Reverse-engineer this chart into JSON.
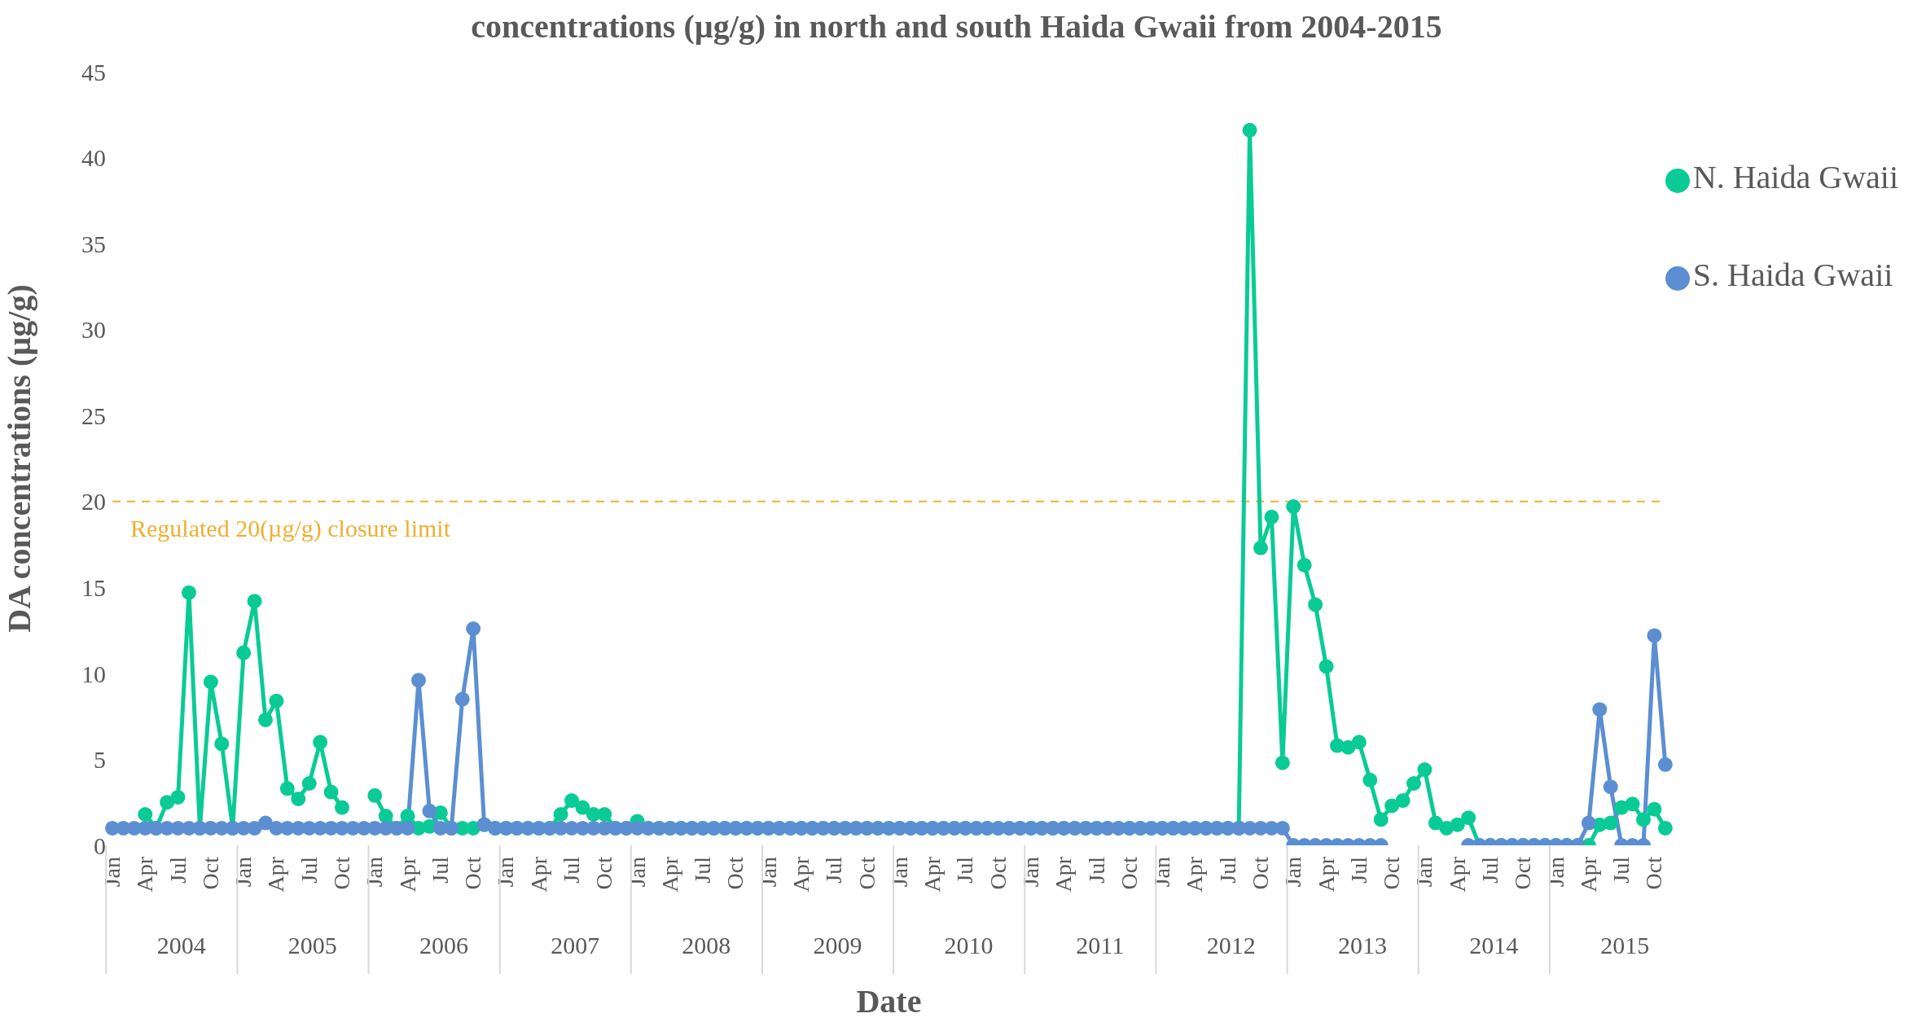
{
  "chart_data": {
    "type": "line",
    "title": "concentrations (µg/g) in north and south Haida Gwaii from 2004-2015",
    "xlabel": "Date",
    "ylabel": "DA concentrations (µg/g)",
    "categories": [
      "Jan",
      null,
      null,
      "Apr",
      null,
      null,
      "Jul",
      null,
      null,
      "Oct",
      null,
      null,
      "Jan",
      null,
      null,
      "Apr",
      null,
      null,
      "Jul",
      null,
      null,
      "Oct",
      null,
      null,
      "Jan",
      null,
      null,
      "Apr",
      null,
      null,
      "Jul",
      null,
      null,
      "Oct",
      null,
      null,
      "Jan",
      null,
      null,
      "Apr",
      null,
      null,
      "Jul",
      null,
      null,
      "Oct",
      null,
      null,
      "Jan",
      null,
      null,
      "Apr",
      null,
      null,
      "Jul",
      null,
      null,
      "Oct",
      null,
      null,
      "Jan",
      null,
      null,
      "Apr",
      null,
      null,
      "Jul",
      null,
      null,
      "Oct",
      null,
      null,
      "Jan",
      null,
      null,
      "Apr",
      null,
      null,
      "Jul",
      null,
      null,
      "Oct",
      null,
      null,
      "Jan",
      null,
      null,
      "Apr",
      null,
      null,
      "Jul",
      null,
      null,
      "Oct",
      null,
      null,
      "Jan",
      null,
      null,
      "Apr",
      null,
      null,
      "Jul",
      null,
      null,
      "Oct",
      null,
      null,
      "Jan",
      null,
      null,
      "Apr",
      null,
      null,
      "Jul",
      null,
      null,
      "Oct",
      null,
      null,
      "Jan",
      null,
      null,
      "Apr",
      null,
      null,
      "Jul",
      null,
      null,
      "Oct",
      null,
      null,
      "Jan",
      null,
      null,
      "Apr",
      null,
      null,
      "Jul",
      null,
      null,
      "Oct",
      null
    ],
    "series": [
      {
        "name": "N. Haida Gwaii",
        "color": "#0acb95",
        "values": [
          null,
          null,
          null,
          1.8,
          1.0,
          2.5,
          2.8,
          14.7,
          1.0,
          9.5,
          5.9,
          1.0,
          11.2,
          14.2,
          7.3,
          8.4,
          3.3,
          2.7,
          3.6,
          6.0,
          3.1,
          2.2,
          null,
          null,
          2.9,
          1.7,
          1.0,
          1.7,
          1.0,
          1.1,
          1.9,
          1.0,
          1.0,
          1.0,
          1.2,
          1.0,
          1,
          1,
          1,
          1,
          1,
          1.8,
          2.6,
          2.2,
          1.8,
          1.8,
          1,
          1,
          1.4,
          1,
          1,
          1,
          1,
          1,
          1,
          1,
          1,
          1,
          1,
          1,
          1,
          1,
          1,
          1,
          1,
          1,
          1,
          1,
          1,
          1,
          1,
          1,
          1,
          1,
          1,
          1,
          1,
          1,
          1,
          1,
          1,
          1,
          1,
          1,
          1,
          1,
          1,
          1,
          1,
          1,
          1,
          1,
          1,
          1,
          1,
          1,
          1,
          1,
          1,
          1,
          1,
          1,
          1,
          1,
          41.6,
          17.3,
          19.1,
          4.8,
          19.7,
          16.3,
          14.0,
          10.4,
          5.8,
          5.7,
          6.0,
          3.8,
          1.5,
          2.3,
          2.6,
          3.6,
          4.4,
          1.3,
          1.0,
          1.2,
          1.6,
          0,
          0,
          0,
          0,
          0,
          0,
          0,
          0,
          0,
          0,
          0,
          1.2,
          1.3,
          2.2,
          2.4,
          1.5,
          2.1,
          1.0
        ]
      },
      {
        "name": "S. Haida Gwaii",
        "color": "#5b8fd1",
        "values": [
          1,
          1,
          1,
          1,
          1,
          1,
          1,
          1,
          1,
          1,
          1,
          1,
          1,
          1,
          1.3,
          1,
          1,
          1,
          1,
          1,
          1,
          1,
          1,
          1,
          1,
          1,
          1,
          1,
          9.6,
          2.0,
          1,
          1,
          8.5,
          12.6,
          1.2,
          1,
          1,
          1,
          1,
          1,
          1,
          1,
          1,
          1,
          1,
          1,
          1,
          1,
          1,
          1,
          1,
          1,
          1,
          1,
          1,
          1,
          1,
          1,
          1,
          1,
          1,
          1,
          1,
          1,
          1,
          1,
          1,
          1,
          1,
          1,
          1,
          1,
          1,
          1,
          1,
          1,
          1,
          1,
          1,
          1,
          1,
          1,
          1,
          1,
          1,
          1,
          1,
          1,
          1,
          1,
          1,
          1,
          1,
          1,
          1,
          1,
          1,
          1,
          1,
          1,
          1,
          1,
          1,
          1,
          1,
          1,
          1,
          1,
          0,
          0,
          0,
          0,
          0,
          0,
          0,
          0,
          0,
          null,
          null,
          null,
          null,
          null,
          null,
          null,
          0,
          0,
          0,
          0,
          0,
          0,
          0,
          0,
          0,
          0,
          0,
          1.3,
          7.9,
          3.4,
          0,
          0,
          0,
          12.2,
          4.7
        ]
      }
    ],
    "annotations": [
      "2004",
      "2005",
      "2006",
      "2007",
      "2008",
      "2009",
      "2010",
      "2011",
      "2012",
      "2013",
      "2014",
      "2015"
    ],
    "ylim": [
      0,
      45
    ],
    "yticks": [
      0,
      5,
      10,
      15,
      20,
      25,
      30,
      35,
      40,
      45
    ],
    "ref_lines": [
      {
        "axis": "y",
        "value": 20,
        "label": "Regulated 20(µg/g) closure limit",
        "color": "#eeb030",
        "line_style": "dashed"
      }
    ],
    "grid": false,
    "legend": "top right",
    "marker": "circle",
    "line_style": "solid"
  }
}
